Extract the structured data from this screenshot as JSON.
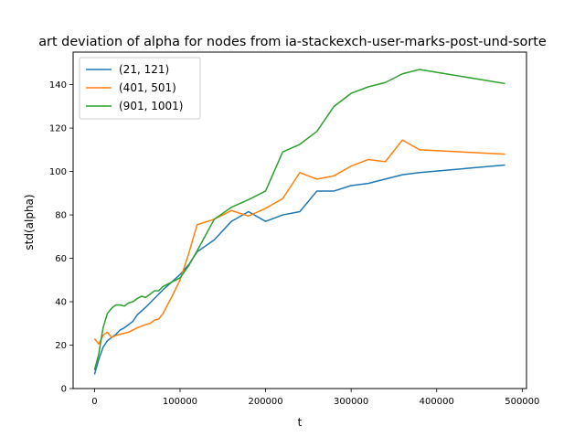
{
  "chart_data": {
    "type": "line",
    "title": "art deviation of alpha for nodes from ia-stackexch-user-marks-post-und-sorte",
    "xlabel": "t",
    "ylabel": "std(alpha)",
    "xlim": [
      -25000,
      505000
    ],
    "ylim": [
      0,
      155000
    ],
    "ylim_note": "",
    "x_ticks": [
      0,
      100000,
      200000,
      300000,
      400000,
      500000
    ],
    "x_tick_labels": [
      "0",
      "100000",
      "200000",
      "300000",
      "400000",
      "500000"
    ],
    "y_ticks": [
      0,
      20,
      40,
      60,
      80,
      100,
      120,
      140
    ],
    "y_tick_labels": [
      "0",
      "20",
      "40",
      "60",
      "80",
      "100",
      "120",
      "140"
    ],
    "y_range": [
      0,
      155
    ],
    "grid": false,
    "legend_position": "upper left",
    "series": [
      {
        "name": "(21, 121)",
        "color": "#1f77b4",
        "x": [
          0,
          5000,
          10000,
          15000,
          20000,
          25000,
          30000,
          35000,
          40000,
          45000,
          50000,
          60000,
          70000,
          80000,
          90000,
          100000,
          110000,
          120000,
          140000,
          160000,
          180000,
          200000,
          220000,
          240000,
          260000,
          280000,
          300000,
          320000,
          340000,
          360000,
          380000,
          480000
        ],
        "y": [
          6.5,
          13.5,
          19,
          22,
          23.5,
          25,
          27,
          28,
          29.5,
          31,
          34,
          37.5,
          41.5,
          45.5,
          49,
          52.5,
          57,
          63,
          68.5,
          77,
          81.5,
          77,
          80,
          81.5,
          91,
          91,
          93.5,
          94.5,
          96.5,
          98.5,
          99.5,
          103
        ]
      },
      {
        "name": "(401, 501)",
        "color": "#ff7f0e",
        "x": [
          0,
          5000,
          10000,
          15000,
          20000,
          25000,
          30000,
          40000,
          50000,
          60000,
          65000,
          70000,
          75000,
          80000,
          90000,
          100000,
          110000,
          120000,
          140000,
          160000,
          180000,
          200000,
          220000,
          240000,
          260000,
          280000,
          300000,
          320000,
          340000,
          360000,
          380000,
          480000
        ],
        "y": [
          23,
          20.5,
          24.5,
          26,
          23.5,
          24.5,
          25,
          26,
          28,
          29.5,
          30,
          31.5,
          32,
          34.5,
          42,
          50,
          62,
          75.5,
          78,
          82,
          79.5,
          83,
          87.5,
          99.5,
          96.5,
          98,
          102.5,
          105.5,
          104.5,
          114.5,
          110,
          108
        ]
      },
      {
        "name": "(901, 1001)",
        "color": "#2ca02c",
        "x": [
          0,
          5000,
          10000,
          15000,
          20000,
          25000,
          30000,
          35000,
          40000,
          45000,
          50000,
          55000,
          60000,
          65000,
          70000,
          75000,
          80000,
          90000,
          100000,
          110000,
          120000,
          140000,
          160000,
          180000,
          200000,
          220000,
          240000,
          260000,
          280000,
          300000,
          320000,
          340000,
          360000,
          380000,
          480000
        ],
        "y": [
          8.5,
          16,
          28,
          34.5,
          37,
          38.5,
          38.5,
          38,
          39.5,
          40,
          41.5,
          42.5,
          42,
          43.5,
          45,
          45,
          47,
          49,
          51,
          56.5,
          63.5,
          78,
          83.5,
          87,
          91,
          109,
          112.5,
          118.5,
          130,
          136,
          139,
          141,
          145,
          147,
          140.5
        ]
      }
    ]
  }
}
